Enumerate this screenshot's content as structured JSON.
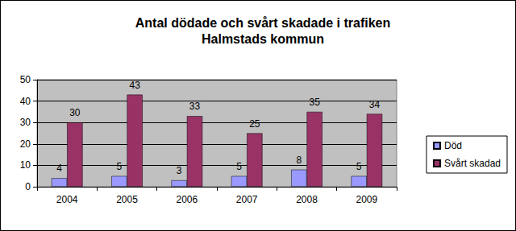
{
  "chart_data": {
    "type": "bar",
    "title": "Antal dödade och svårt skadade i trafiken",
    "subtitle": "Halmstads kommun",
    "categories": [
      "2004",
      "2005",
      "2006",
      "2007",
      "2008",
      "2009"
    ],
    "series": [
      {
        "name": "Död",
        "color": "#9999ff",
        "values": [
          4,
          5,
          3,
          5,
          8,
          5
        ]
      },
      {
        "name": "Svårt skadad",
        "color": "#993366",
        "values": [
          30,
          43,
          33,
          25,
          35,
          34
        ]
      }
    ],
    "ylim": [
      0,
      50
    ],
    "yticks": [
      0,
      10,
      20,
      30,
      40,
      50
    ],
    "grid": true,
    "legend": "right",
    "data_labels": true
  }
}
